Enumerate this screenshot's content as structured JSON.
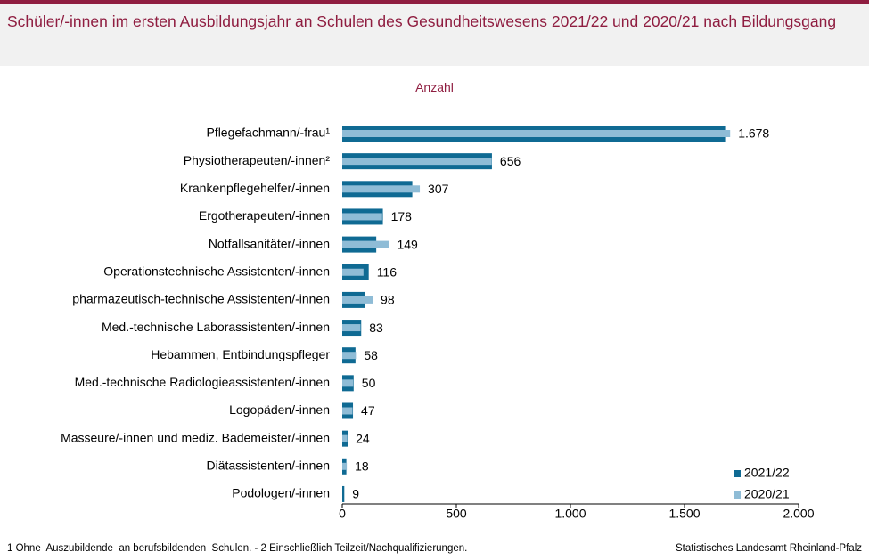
{
  "title": "Schüler/-innen im ersten Ausbildungsjahr an Schulen des Gesundheitswesens 2021/22 und 2020/21 nach Bildungsgang",
  "footnote": "1 Ohne  Auszubildende  an berufsbildenden  Schulen. - 2 Einschließlich Teilzeit/Nachqualifizierungen.",
  "source": "Statistisches Landesamt Rheinland-Pfalz",
  "colors": {
    "series_2021": "#0f6a93",
    "series_2020": "#8fbcd6",
    "title": "#8f1d40"
  },
  "chart_data": {
    "type": "bar",
    "orientation": "horizontal",
    "unit_label": "Anzahl",
    "categories": [
      "Pflegefachmann/-frau¹",
      "Physiotherapeuten/-innen²",
      "Krankenpflegehelfer/-innen",
      "Ergotherapeuten/-innen",
      "Notfallsanitäter/-innen",
      "Operationstechnische Assistenten/-innen",
      "pharmazeutisch-technische Assistenten/-innen",
      "Med.-technische Laborassistenten/-innen",
      "Hebammen, Entbindungspfleger",
      "Med.-technische Radiologieassistenten/-innen",
      "Logopäden/-innen",
      "Masseure/-innen und mediz. Bademeister/-innen",
      "Diätassistenten/-innen",
      "Podologen/-innen"
    ],
    "series": [
      {
        "name": "2021/22",
        "values": [
          1678,
          656,
          307,
          178,
          149,
          116,
          98,
          83,
          58,
          50,
          47,
          24,
          18,
          9
        ]
      },
      {
        "name": "2020/21",
        "values": [
          1700,
          655,
          340,
          175,
          205,
          93,
          133,
          80,
          60,
          48,
          45,
          22,
          20,
          0
        ]
      }
    ],
    "data_labels": [
      "1.678",
      "656",
      "307",
      "178",
      "149",
      "116",
      "98",
      "83",
      "58",
      "50",
      "47",
      "24",
      "18",
      "9"
    ],
    "xlim": [
      0,
      2000
    ],
    "xticks": [
      0,
      500,
      1000,
      1500,
      2000
    ],
    "xtick_labels": [
      "0",
      "500",
      "1.000",
      "1.500",
      "2.000"
    ],
    "grid": false,
    "legend_position": "bottom-right"
  }
}
